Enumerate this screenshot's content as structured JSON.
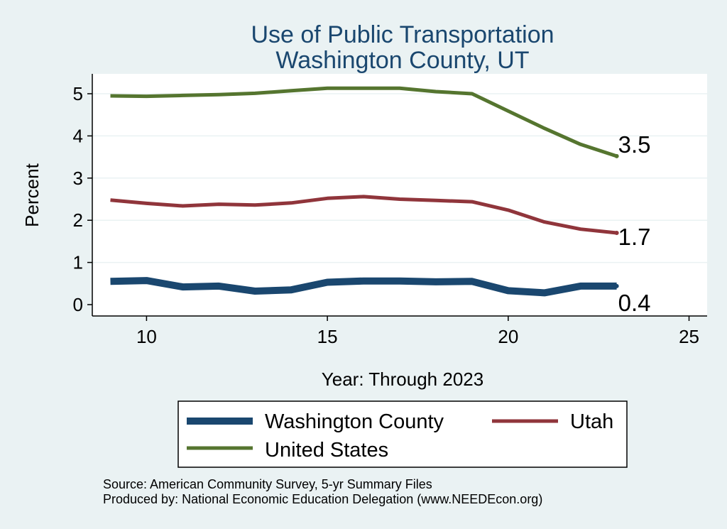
{
  "chart_data": {
    "type": "line",
    "title": [
      "Use of Public Transportation",
      "Washington County, UT"
    ],
    "xlabel": "Year: Through 2023",
    "ylabel": "Percent",
    "xlim": [
      9,
      25
    ],
    "ylim": [
      0,
      5.2
    ],
    "xticks": [
      10,
      15,
      20,
      25
    ],
    "yticks": [
      0,
      1,
      2,
      3,
      4,
      5
    ],
    "grid": true,
    "x": [
      9,
      10,
      11,
      12,
      13,
      14,
      15,
      16,
      17,
      18,
      19,
      20,
      21,
      22,
      23
    ],
    "series": [
      {
        "name": "Washington County",
        "color": "#1a476f",
        "values": [
          0.55,
          0.57,
          0.42,
          0.44,
          0.32,
          0.35,
          0.53,
          0.56,
          0.56,
          0.54,
          0.55,
          0.33,
          0.28,
          0.44,
          0.44
        ],
        "end_label": "0.4"
      },
      {
        "name": "Utah",
        "color": "#90353b",
        "values": [
          2.48,
          2.4,
          2.34,
          2.38,
          2.36,
          2.41,
          2.52,
          2.56,
          2.5,
          2.47,
          2.44,
          2.24,
          1.96,
          1.79,
          1.7
        ],
        "end_label": "1.7"
      },
      {
        "name": "United States",
        "color": "#55752f",
        "values": [
          4.95,
          4.94,
          4.96,
          4.98,
          5.01,
          5.07,
          5.13,
          5.13,
          5.13,
          5.05,
          5.0,
          4.59,
          4.18,
          3.8,
          3.52
        ],
        "end_label": "3.5"
      }
    ],
    "legend_position": "bottom",
    "notes": [
      "Source: American Community Survey, 5-yr Summary Files",
      "Produced by: National Economic Education Delegation (www.NEEDEcon.org)"
    ]
  }
}
